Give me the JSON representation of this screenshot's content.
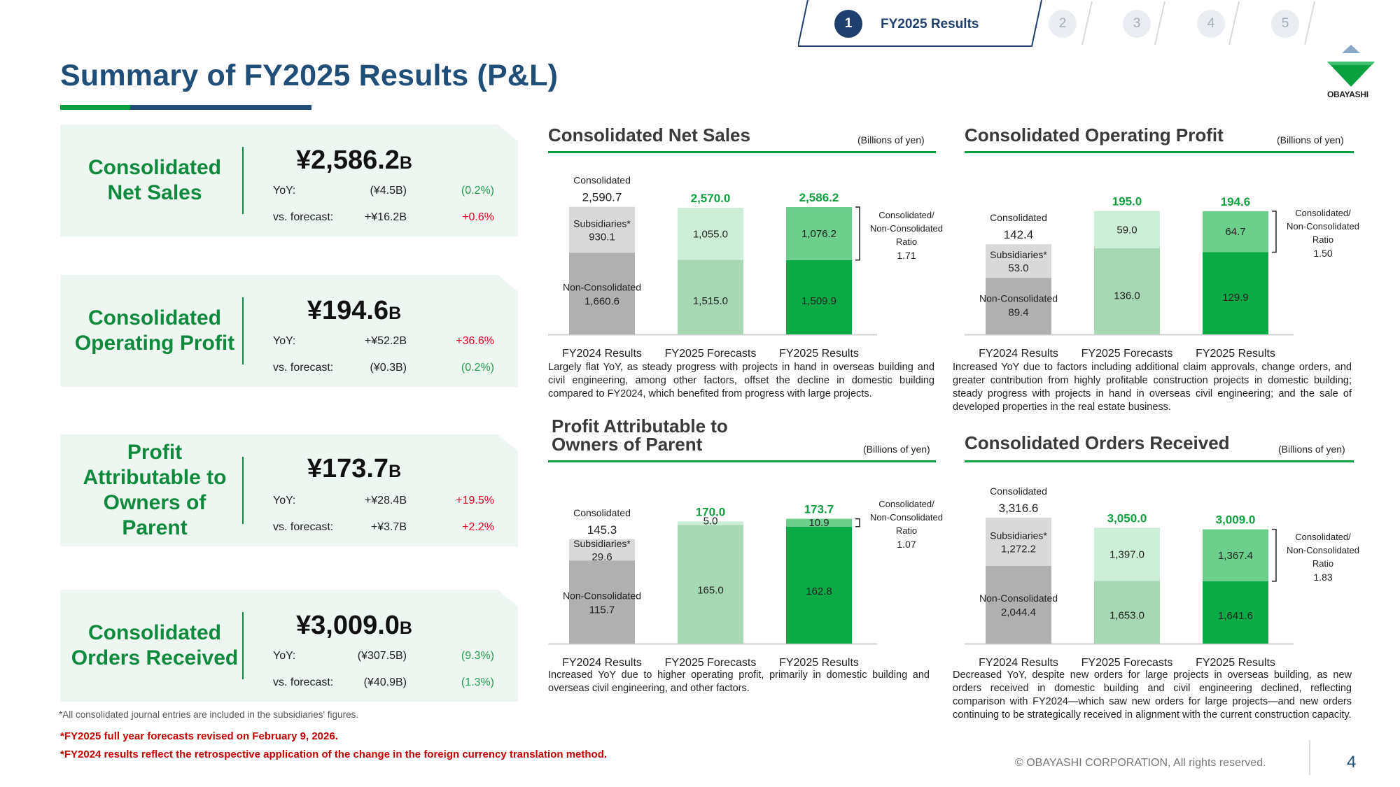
{
  "header": {
    "title": "Summary of FY2025 Results (P&L)",
    "tabs": [
      {
        "num": "1",
        "label": "FY2025 Results",
        "active": true
      },
      {
        "num": "2",
        "active": false
      },
      {
        "num": "3",
        "active": false
      },
      {
        "num": "4",
        "active": false
      },
      {
        "num": "5",
        "active": false
      }
    ],
    "logo_text": "OBAYASHI"
  },
  "kpis": [
    {
      "label": "Consolidated Net Sales",
      "value": "¥2,586.2",
      "unit": "B",
      "yoy_label": "YoY:",
      "yoy": "(¥4.5B)",
      "yoy_pct": "(0.2%)",
      "yoy_color": "#22a050",
      "fc_label": "vs. forecast:",
      "fc": "+¥16.2B",
      "fc_pct": "+0.6%",
      "fc_color": "#e00020"
    },
    {
      "label": "Consolidated Operating Profit",
      "value": "¥194.6",
      "unit": "B",
      "yoy_label": "YoY:",
      "yoy": "+¥52.2B",
      "yoy_pct": "+36.6%",
      "yoy_color": "#e00020",
      "fc_label": "vs. forecast:",
      "fc": "(¥0.3B)",
      "fc_pct": "(0.2%)",
      "fc_color": "#22a050"
    },
    {
      "label": "Profit Attributable to Owners of Parent",
      "value": "¥173.7",
      "unit": "B",
      "yoy_label": "YoY:",
      "yoy": "+¥28.4B",
      "yoy_pct": "+19.5%",
      "yoy_color": "#e00020",
      "fc_label": "vs. forecast:",
      "fc": "+¥3.7B",
      "fc_pct": "+2.2%",
      "fc_color": "#e00020"
    },
    {
      "label": "Consolidated Orders Received",
      "value": "¥3,009.0",
      "unit": "B",
      "yoy_label": "YoY:",
      "yoy": "(¥307.5B)",
      "yoy_pct": "(9.3%)",
      "yoy_color": "#22a050",
      "fc_label": "vs. forecast:",
      "fc": "(¥40.9B)",
      "fc_pct": "(1.3%)",
      "fc_color": "#22a050"
    }
  ],
  "colors": {
    "fy24_sub": "#d9d9d9",
    "fy24_non": "#b0b0b0",
    "fc_sub": "#cdeed6",
    "fc_non": "#a6d8b3",
    "res_sub": "#6ccf8c",
    "res_non": "#0aab45",
    "green_text": "#0fa040"
  },
  "chart_data": [
    {
      "type": "bar",
      "stacked": true,
      "title": "Consolidated Net Sales",
      "unit": "(Billions of yen)",
      "categories": [
        "FY2024 Results",
        "FY2025 Forecasts",
        "FY2025 Results"
      ],
      "series": [
        {
          "name": "Non-Consolidated",
          "values": [
            1660.6,
            1515.0,
            1509.9
          ]
        },
        {
          "name": "Subsidiaries*",
          "values": [
            930.1,
            1055.0,
            1076.2
          ]
        }
      ],
      "totals": [
        2590.7,
        2570.0,
        2586.2
      ],
      "total_labels": [
        "2,590.7",
        "2,570.0",
        "2,586.2"
      ],
      "non_labels": [
        "1,660.6",
        "1,515.0",
        "1,509.9"
      ],
      "sub_labels": [
        "930.1",
        "1,055.0",
        "1,076.2"
      ],
      "first_total_caption": "Consolidated",
      "ratio_caption": [
        "Consolidated/",
        "Non-Consolidated",
        "Ratio"
      ],
      "ratio": "1.71",
      "ylim": [
        0,
        2700
      ],
      "description": "Largely flat YoY, as steady progress with projects in hand in overseas building and civil engineering, among other factors, offset the decline in domestic building compared to FY2024, which benefited from progress with large projects."
    },
    {
      "type": "bar",
      "stacked": true,
      "title": "Consolidated Operating Profit",
      "unit": "(Billions of yen)",
      "categories": [
        "FY2024 Results",
        "FY2025 Forecasts",
        "FY2025 Results"
      ],
      "series": [
        {
          "name": "Non-Consolidated",
          "values": [
            89.4,
            136.0,
            129.9
          ]
        },
        {
          "name": "Subsidiaries*",
          "values": [
            53.0,
            59.0,
            64.7
          ]
        }
      ],
      "totals": [
        142.4,
        195.0,
        194.6
      ],
      "total_labels": [
        "142.4",
        "195.0",
        "194.6"
      ],
      "non_labels": [
        "89.4",
        "136.0",
        "129.9"
      ],
      "sub_labels": [
        "53.0",
        "59.0",
        "64.7"
      ],
      "first_total_caption": "Consolidated",
      "ratio_caption": [
        "Consolidated/",
        "Non-Consolidated",
        "Ratio"
      ],
      "ratio": "1.50",
      "ylim": [
        0,
        210
      ],
      "description": "Increased YoY due to factors including additional claim approvals, change orders, and greater contribution from highly profitable construction projects in domestic building; steady progress with projects in hand in overseas civil engineering; and the sale of developed properties in the real estate business."
    },
    {
      "type": "bar",
      "stacked": true,
      "title": "Profit Attributable to Owners of Parent",
      "unit": "(Billions of yen)",
      "categories": [
        "FY2024 Results",
        "FY2025 Forecasts",
        "FY2025 Results"
      ],
      "series": [
        {
          "name": "Non-Consolidated",
          "values": [
            115.7,
            165.0,
            162.8
          ]
        },
        {
          "name": "Subsidiaries*",
          "values": [
            29.6,
            5.0,
            10.9
          ]
        }
      ],
      "totals": [
        145.3,
        170.0,
        173.7
      ],
      "total_labels": [
        "145.3",
        "170.0",
        "173.7"
      ],
      "non_labels": [
        "115.7",
        "165.0",
        "162.8"
      ],
      "sub_labels": [
        "29.6",
        "5.0",
        "10.9"
      ],
      "first_total_caption": "Consolidated",
      "ratio_caption": [
        "Consolidated/",
        "Non-Consolidated",
        "Ratio"
      ],
      "ratio": "1.07",
      "ylim": [
        0,
        185
      ],
      "description": "Increased YoY due to higher operating profit, primarily in domestic building and overseas civil engineering, and other factors."
    },
    {
      "type": "bar",
      "stacked": true,
      "title": "Consolidated Orders Received",
      "unit": "(Billions of yen)",
      "categories": [
        "FY2024 Results",
        "FY2025 Forecasts",
        "FY2025 Results"
      ],
      "series": [
        {
          "name": "Non-Consolidated",
          "values": [
            2044.4,
            1653.0,
            1641.6
          ]
        },
        {
          "name": "Subsidiaries*",
          "values": [
            1272.2,
            1397.0,
            1367.4
          ]
        }
      ],
      "totals": [
        3316.6,
        3050.0,
        3009.0
      ],
      "total_labels": [
        "3,316.6",
        "3,050.0",
        "3,009.0"
      ],
      "non_labels": [
        "2,044.4",
        "1,653.0",
        "1,641.6"
      ],
      "sub_labels": [
        "1,272.2",
        "1,397.0",
        "1,367.4"
      ],
      "first_total_caption": "Consolidated",
      "ratio_caption": [
        "Consolidated/",
        "Non-Consolidated",
        "Ratio"
      ],
      "ratio": "1.83",
      "ylim": [
        0,
        3500
      ],
      "description": "Decreased YoY, despite new orders for large projects in overseas building, as new orders received in domestic building and civil engineering declined, reflecting comparison with FY2024—which saw new orders for large projects—and new orders continuing to be strategically received in alignment with the current construction capacity."
    }
  ],
  "footnotes": {
    "gray": "*All consolidated journal entries are included in the subsidiaries' figures.",
    "red1": "*FY2025 full year forecasts revised on February 9, 2026.",
    "red2": "*FY2024 results reflect the retrospective application of the change in the foreign currency translation method."
  },
  "copyright": "© OBAYASHI CORPORATION, All rights reserved.",
  "page_number": "4"
}
